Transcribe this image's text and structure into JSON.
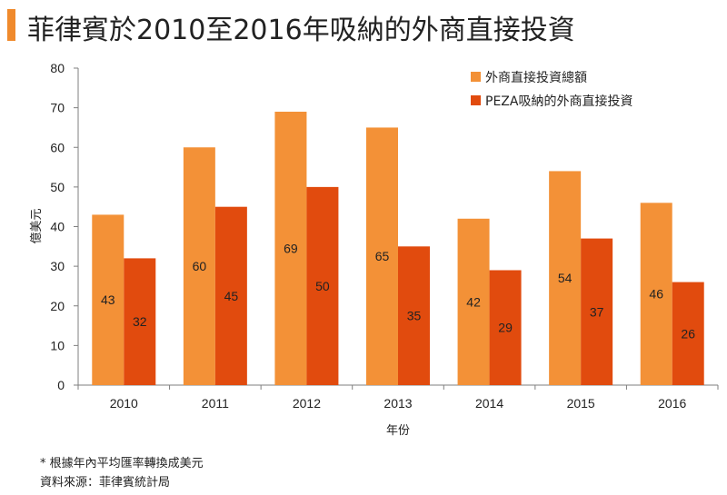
{
  "title": "菲律賓於2010至2016年吸納的外商直接投資",
  "footnote": "* 根據年內平均匯率轉換成美元",
  "source": "資料來源：菲律賓統計局",
  "colors": {
    "total": "#f39137",
    "peza": "#e14b0e",
    "accent": "#f08a2c"
  },
  "chart_data": {
    "type": "bar",
    "categories": [
      "2010",
      "2011",
      "2012",
      "2013",
      "2014",
      "2015",
      "2016"
    ],
    "series": [
      {
        "name": "外商直接投資總額",
        "values": [
          43,
          60,
          69,
          65,
          42,
          54,
          46
        ]
      },
      {
        "name": "PEZA吸納的外商直接投資",
        "values": [
          32,
          45,
          50,
          35,
          29,
          37,
          26
        ]
      }
    ],
    "xlabel": "年份",
    "ylabel": "億美元",
    "ylim": [
      0,
      80
    ],
    "yticks": [
      0,
      10,
      20,
      30,
      40,
      50,
      60,
      70,
      80
    ],
    "legend_position": "top-right",
    "grid": false
  }
}
